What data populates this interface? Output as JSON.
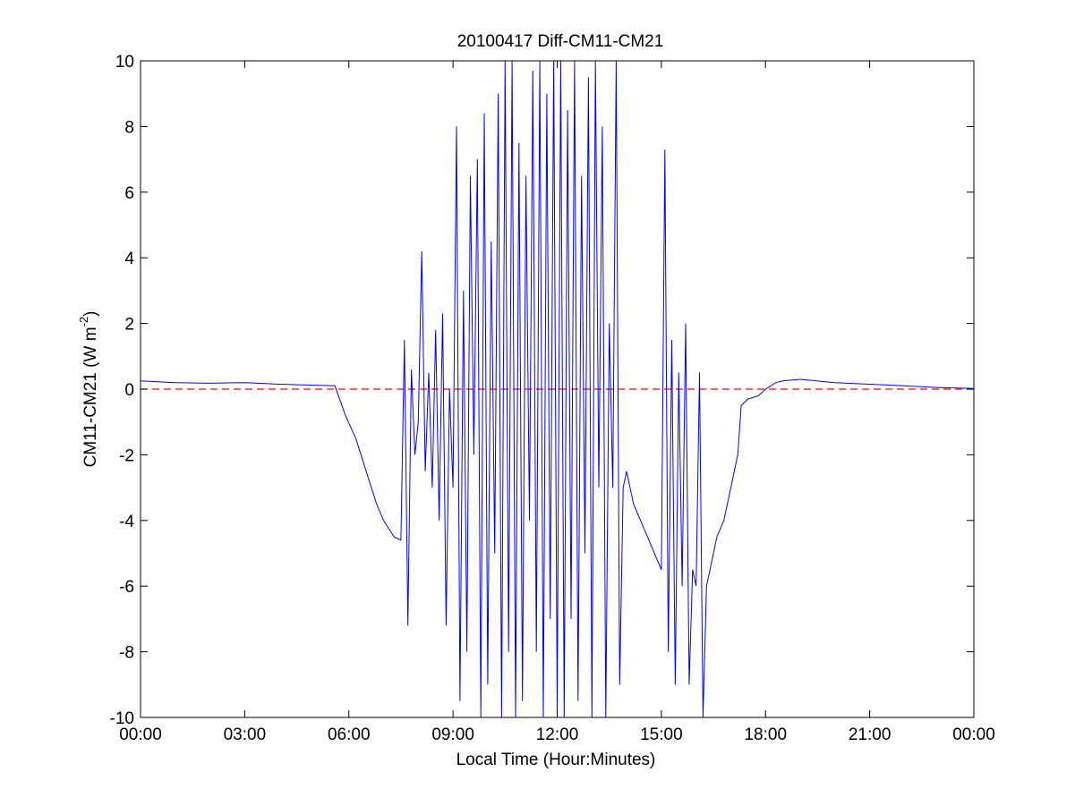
{
  "chart_data": {
    "type": "line",
    "title": "20100417 Diff-CM11-CM21",
    "xlabel": "Local Time (Hour:Minutes)",
    "ylabel_main": "CM11-CM21 (W m",
    "ylabel_sup": "-2",
    "ylabel_close": ")",
    "x_unit": "hours",
    "xlim": [
      0,
      24
    ],
    "ylim": [
      -10,
      10
    ],
    "x_ticks": [
      0,
      3,
      6,
      9,
      12,
      15,
      18,
      21,
      24
    ],
    "x_tick_labels": [
      "00:00",
      "03:00",
      "06:00",
      "09:00",
      "12:00",
      "15:00",
      "18:00",
      "21:00",
      "00:00"
    ],
    "y_ticks": [
      -10,
      -8,
      -6,
      -4,
      -2,
      0,
      2,
      4,
      6,
      8,
      10
    ],
    "y_tick_labels": [
      "-10",
      "-8",
      "-6",
      "-4",
      "-2",
      "0",
      "2",
      "4",
      "6",
      "8",
      "10"
    ],
    "grid": false,
    "series": [
      {
        "color": "#0000ff",
        "style": "solid",
        "x": [
          0.0,
          1.0,
          2.0,
          3.0,
          4.0,
          5.0,
          5.6,
          5.9,
          6.2,
          6.5,
          6.8,
          7.0,
          7.3,
          7.5,
          7.6,
          7.7,
          7.8,
          7.9,
          8.0,
          8.1,
          8.2,
          8.3,
          8.4,
          8.5,
          8.6,
          8.7,
          8.8,
          8.9,
          9.0,
          9.1,
          9.2,
          9.3,
          9.4,
          9.5,
          9.6,
          9.7,
          9.8,
          9.9,
          10.0,
          10.1,
          10.2,
          10.3,
          10.4,
          10.5,
          10.6,
          10.7,
          10.8,
          10.9,
          11.0,
          11.1,
          11.2,
          11.3,
          11.4,
          11.5,
          11.6,
          11.7,
          11.8,
          11.9,
          12.0,
          12.1,
          12.2,
          12.3,
          12.4,
          12.5,
          12.6,
          12.7,
          12.8,
          12.9,
          13.0,
          13.1,
          13.2,
          13.3,
          13.4,
          13.5,
          13.6,
          13.7,
          13.8,
          13.9,
          14.0,
          14.2,
          14.4,
          14.6,
          14.8,
          15.0,
          15.1,
          15.2,
          15.3,
          15.4,
          15.5,
          15.6,
          15.7,
          15.8,
          15.9,
          16.0,
          16.1,
          16.2,
          16.3,
          16.4,
          16.6,
          16.8,
          17.0,
          17.2,
          17.3,
          17.5,
          17.8,
          18.0,
          18.3,
          18.5,
          19.0,
          20.0,
          21.0,
          22.0,
          23.0,
          24.0
        ],
        "y": [
          0.25,
          0.2,
          0.18,
          0.2,
          0.15,
          0.12,
          0.1,
          -0.8,
          -1.5,
          -2.5,
          -3.5,
          -4.0,
          -4.5,
          -4.6,
          1.5,
          -7.2,
          0.6,
          -2.0,
          -1.0,
          4.2,
          -2.5,
          0.5,
          -3.0,
          1.8,
          -4.0,
          2.3,
          -7.2,
          0.0,
          -3.0,
          8.0,
          -9.5,
          3.0,
          -8.0,
          6.5,
          -2.0,
          7.0,
          -10.0,
          8.4,
          -9.0,
          4.5,
          -5.0,
          9.0,
          -10.0,
          10.0,
          -8.0,
          10.0,
          -10.0,
          7.5,
          -9.5,
          6.5,
          -4.0,
          9.7,
          -8.0,
          10.0,
          -10.0,
          9.0,
          -7.0,
          10.0,
          -9.8,
          10.0,
          -10.0,
          8.5,
          -7.0,
          10.0,
          -9.5,
          6.5,
          -5.0,
          9.5,
          -10.0,
          10.0,
          -3.0,
          8.0,
          -10.0,
          2.0,
          -3.0,
          10.0,
          -9.0,
          -3.0,
          -2.5,
          -3.5,
          -4.0,
          -4.5,
          -5.0,
          -5.5,
          7.3,
          -8.0,
          1.5,
          -9.0,
          0.5,
          -6.0,
          2.0,
          -9.0,
          -5.5,
          -6.0,
          0.5,
          -10.0,
          -6.0,
          -5.5,
          -4.5,
          -4.0,
          -3.0,
          -2.0,
          -0.5,
          -0.3,
          -0.2,
          0.0,
          0.2,
          0.25,
          0.3,
          0.2,
          0.15,
          0.1,
          0.05,
          0.02
        ]
      },
      {
        "color": "#ff0000",
        "style": "dashed",
        "x": [
          0,
          24
        ],
        "y": [
          0,
          0
        ]
      }
    ]
  }
}
